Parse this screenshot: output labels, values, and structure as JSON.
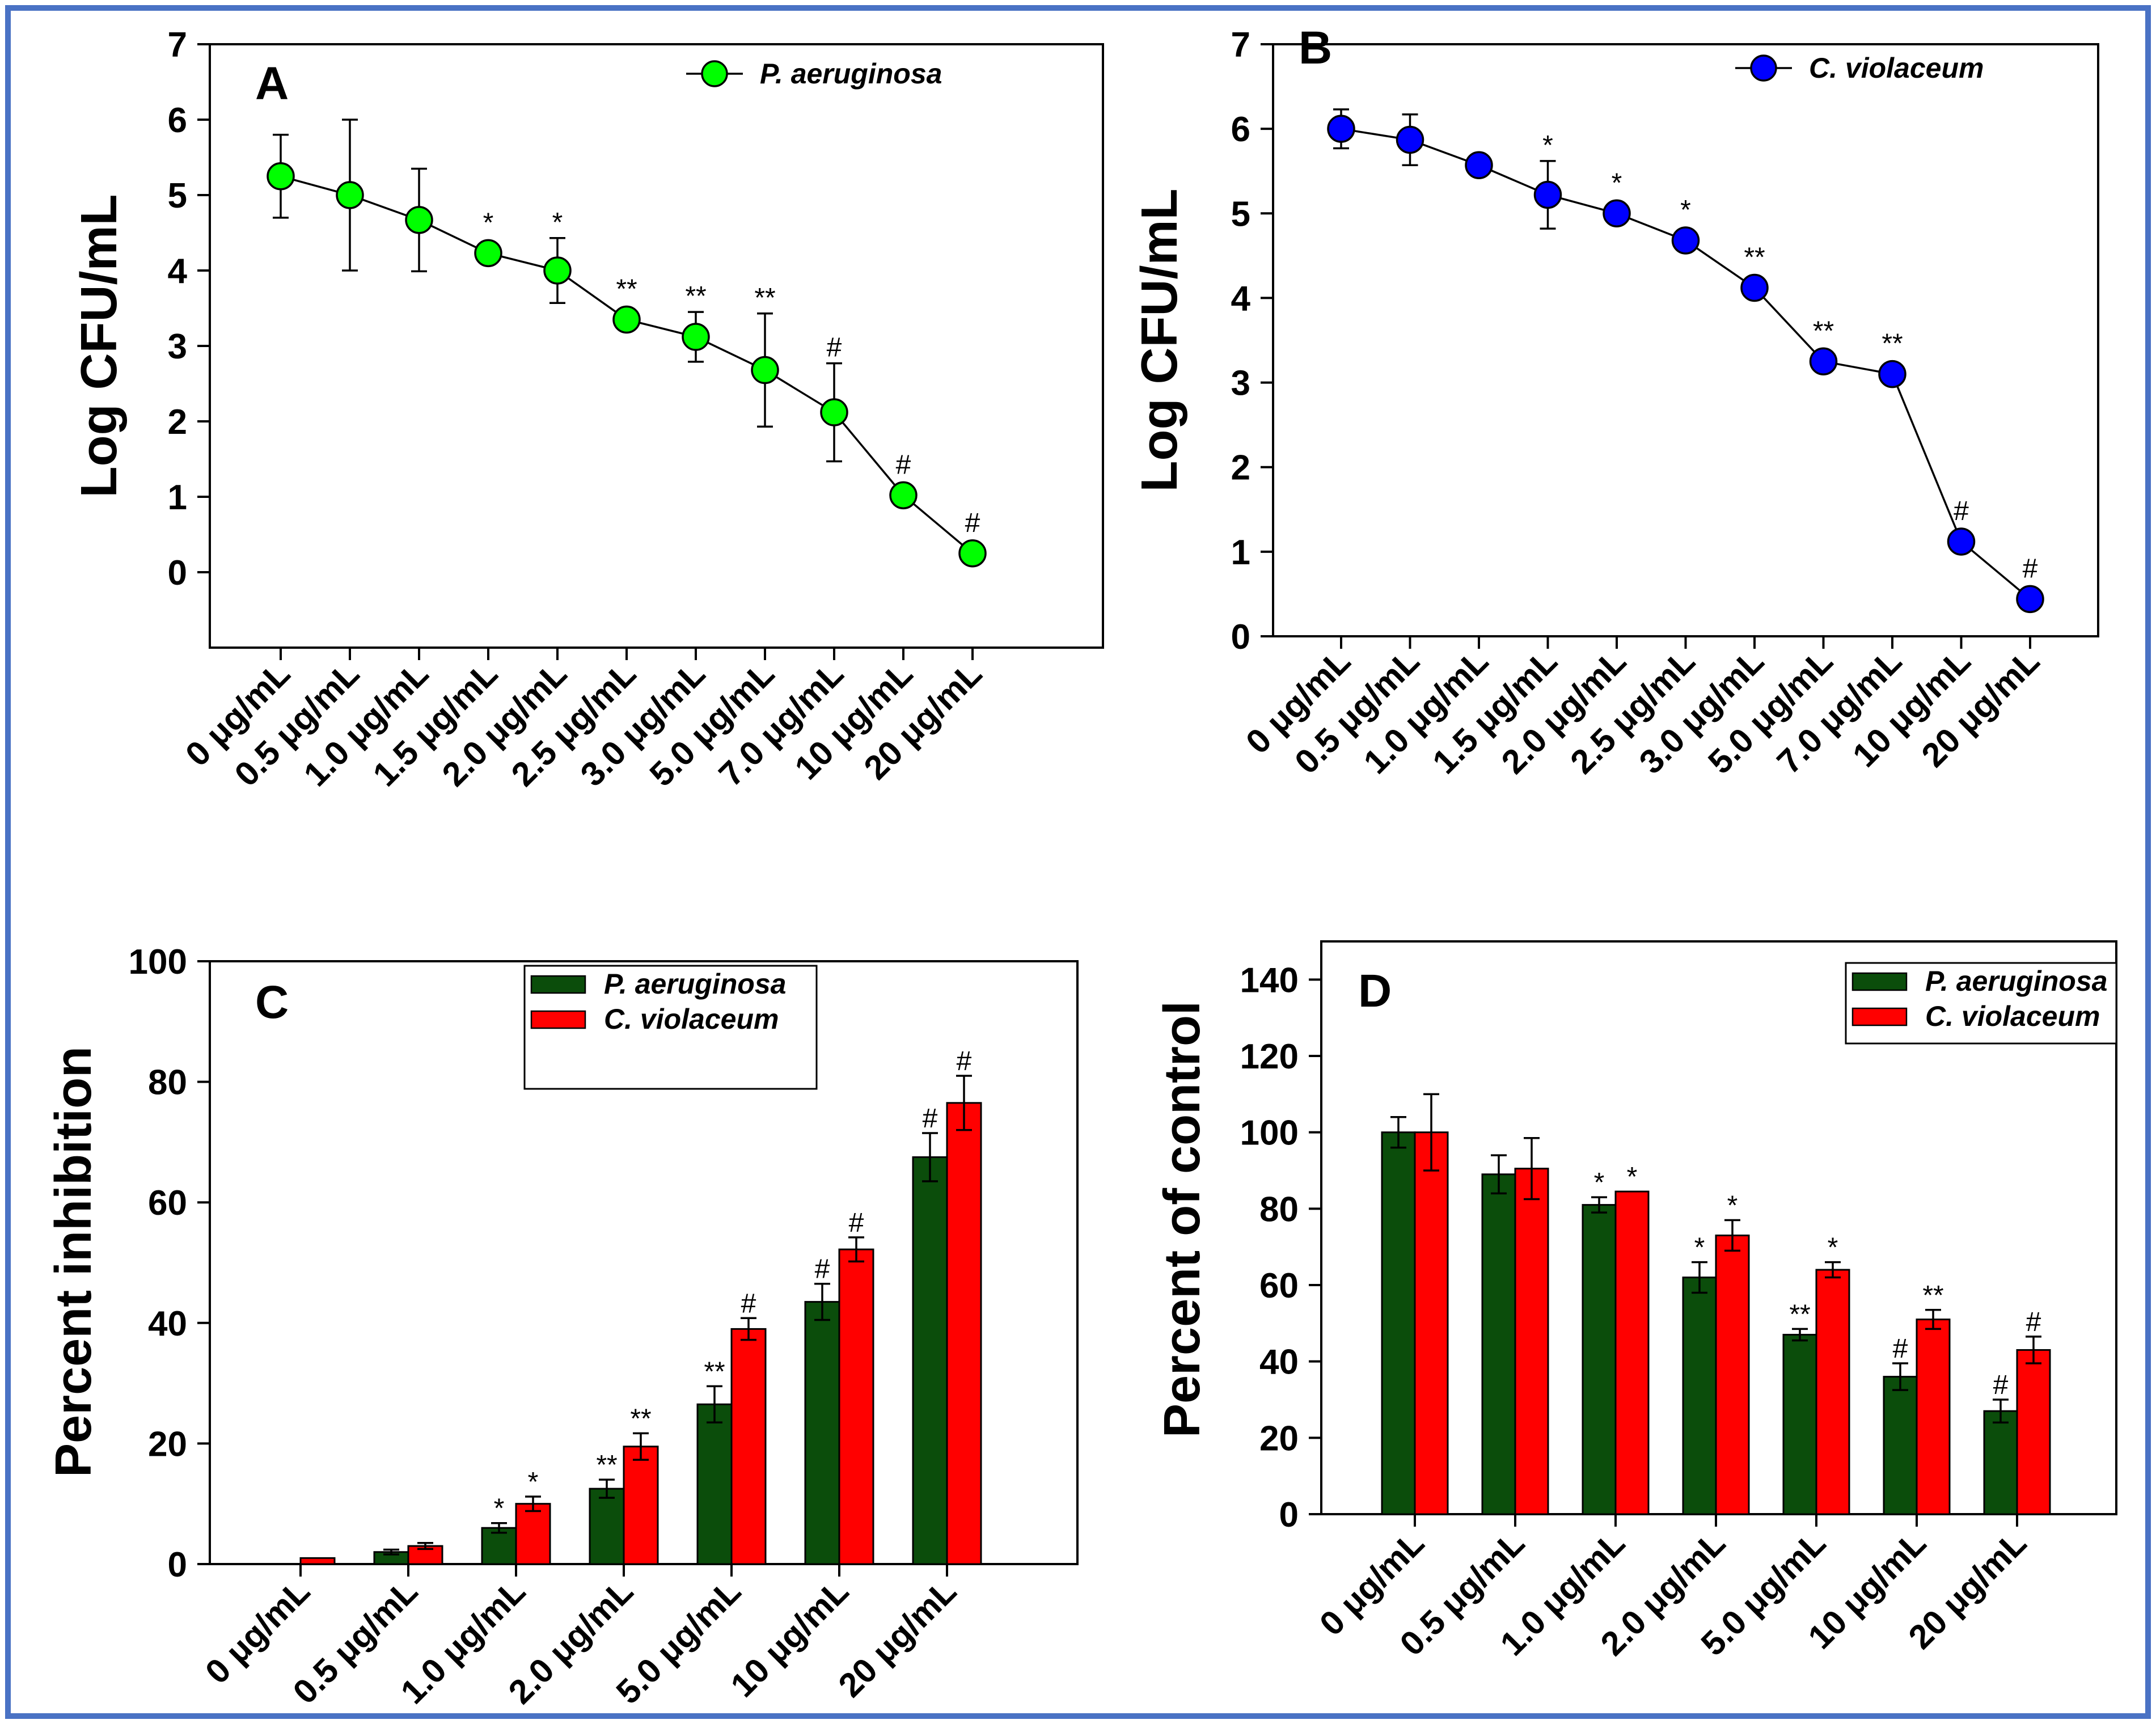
{
  "colors": {
    "border": "#4a72c4",
    "green_marker": "#00ff00",
    "blue_marker": "#0000ff",
    "green_bar": "#0b4d0b",
    "red_bar": "#ff0000"
  },
  "chart_data": [
    {
      "panel": "A",
      "type": "line",
      "ylabel": "Log CFU/mL",
      "ylim": [
        -1,
        7
      ],
      "yticks": [
        0,
        1,
        2,
        3,
        4,
        5,
        6,
        7
      ],
      "categories": [
        "0 μg/mL",
        "0.5 μg/mL",
        "1.0 μg/mL",
        "1.5 μg/mL",
        "2.0  μg/mL",
        "2.5 μg/mL",
        "3.0 μg/mL",
        "5.0 μg/mL",
        "7.0 μg/mL",
        "10 μg/mL",
        "20 μg/mL"
      ],
      "series": [
        {
          "name": "P. aeruginosa",
          "color": "#00ff00",
          "values": [
            5.25,
            5.0,
            4.67,
            4.23,
            4.0,
            3.35,
            3.12,
            2.68,
            2.12,
            1.02,
            0.25
          ],
          "errors": [
            0.55,
            1.0,
            0.68,
            0,
            0.43,
            0,
            0.33,
            0.75,
            0.65,
            0,
            0
          ],
          "significance": [
            "",
            "",
            "",
            "*",
            "*",
            "**",
            "**",
            "**",
            "#",
            "#",
            "#"
          ]
        }
      ]
    },
    {
      "panel": "B",
      "type": "line",
      "ylabel": "Log CFU/mL",
      "ylim": [
        0,
        7
      ],
      "yticks": [
        0,
        1,
        2,
        3,
        4,
        5,
        6,
        7
      ],
      "categories": [
        "0 μg/mL",
        "0.5 μg/mL",
        "1.0 μg/mL",
        "1.5 μg/mL",
        "2.0  μg/mL",
        "2.5 μg/mL",
        "3.0 μg/mL",
        "5.0 μg/mL",
        "7.0 μg/mL",
        "10 μg/mL",
        "20 μg/mL"
      ],
      "series": [
        {
          "name": "C. violaceum",
          "color": "#0000ff",
          "values": [
            6.0,
            5.87,
            5.57,
            5.22,
            5.0,
            4.68,
            4.12,
            3.25,
            3.1,
            1.12,
            0.44
          ],
          "errors": [
            0.23,
            0.3,
            0,
            0.4,
            0,
            0,
            0,
            0,
            0,
            0,
            0
          ],
          "significance": [
            "",
            "",
            "",
            "*",
            "*",
            "*",
            "**",
            "**",
            "**",
            "#",
            "#"
          ]
        }
      ]
    },
    {
      "panel": "C",
      "type": "bar",
      "ylabel": "Percent inhibition",
      "ylim": [
        0,
        100
      ],
      "yticks": [
        0,
        20,
        40,
        60,
        80,
        100
      ],
      "categories": [
        "0  μg/mL",
        "0.5  μg/mL",
        "1.0  μg/mL",
        "2.0  μg/mL",
        "5.0  μg/mL",
        "10  μg/mL",
        "20  μg/mL"
      ],
      "series": [
        {
          "name": "P. aeruginosa",
          "color": "#0b4d0b",
          "values": [
            0,
            2,
            6,
            12.5,
            26.5,
            43.5,
            67.5
          ],
          "errors": [
            0,
            0.4,
            0.8,
            1.5,
            3,
            3,
            4
          ],
          "significance": [
            "",
            "",
            "*",
            "**",
            "**",
            "#",
            "#"
          ]
        },
        {
          "name": "C. violaceum",
          "color": "#ff0000",
          "values": [
            1,
            3,
            10,
            19.5,
            39,
            52.2,
            76.5
          ],
          "errors": [
            0,
            0.5,
            1.2,
            2.2,
            1.8,
            2,
            4.5
          ],
          "significance": [
            "",
            "",
            "*",
            "**",
            "#",
            "#",
            "#"
          ]
        }
      ]
    },
    {
      "panel": "D",
      "type": "bar",
      "ylabel": "Percent of control",
      "ylim": [
        0,
        150
      ],
      "yticks": [
        0,
        20,
        40,
        60,
        80,
        100,
        120,
        140
      ],
      "categories": [
        "0  μg/mL",
        "0.5  μg/mL",
        "1.0  μg/mL",
        "2.0  μg/mL",
        "5.0  μg/mL",
        "10  μg/mL",
        "20  μg/mL"
      ],
      "series": [
        {
          "name": "P. aeruginosa",
          "color": "#0b4d0b",
          "values": [
            100,
            89,
            81,
            62,
            47,
            36,
            27
          ],
          "errors": [
            4,
            5,
            2,
            4,
            1.5,
            3.5,
            3
          ],
          "significance": [
            "",
            "",
            "*",
            "*",
            "**",
            "#",
            "#"
          ]
        },
        {
          "name": "C. violaceum",
          "color": "#ff0000",
          "values": [
            100,
            90.5,
            84.5,
            73,
            64,
            51,
            43
          ],
          "errors": [
            10,
            8,
            0,
            4,
            2,
            2.5,
            3.5
          ],
          "significance": [
            "",
            "",
            "*",
            "*",
            "*",
            "**",
            "#"
          ]
        }
      ]
    }
  ]
}
